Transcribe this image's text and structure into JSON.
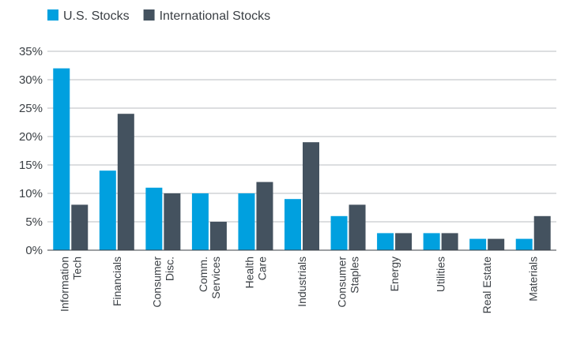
{
  "chart_data": {
    "type": "bar",
    "title": "",
    "xlabel": "",
    "ylabel": "",
    "ylim": [
      0,
      35
    ],
    "yticks": [
      0,
      5,
      10,
      15,
      20,
      25,
      30,
      35
    ],
    "ytick_labels": [
      "0%",
      "5%",
      "10%",
      "15%",
      "20%",
      "25%",
      "30%",
      "35%"
    ],
    "grid": "horizontal",
    "legend_position": "top-left",
    "categories": [
      [
        "Information",
        "Tech"
      ],
      [
        "Financials"
      ],
      [
        "Consumer",
        "Disc."
      ],
      [
        "Comm.",
        "Services"
      ],
      [
        "Health",
        "Care"
      ],
      [
        "Industrials"
      ],
      [
        "Consumer",
        "Staples"
      ],
      [
        "Energy"
      ],
      [
        "Utilities"
      ],
      [
        "Real Estate"
      ],
      [
        "Materials"
      ]
    ],
    "series": [
      {
        "name": "U.S. Stocks",
        "color": "#00a0df",
        "values": [
          32,
          14,
          11,
          10,
          10,
          9,
          6,
          3,
          3,
          2,
          2
        ]
      },
      {
        "name": "International Stocks",
        "color": "#44525f",
        "values": [
          8,
          24,
          10,
          5,
          12,
          19,
          8,
          3,
          3,
          2,
          6
        ]
      }
    ]
  }
}
